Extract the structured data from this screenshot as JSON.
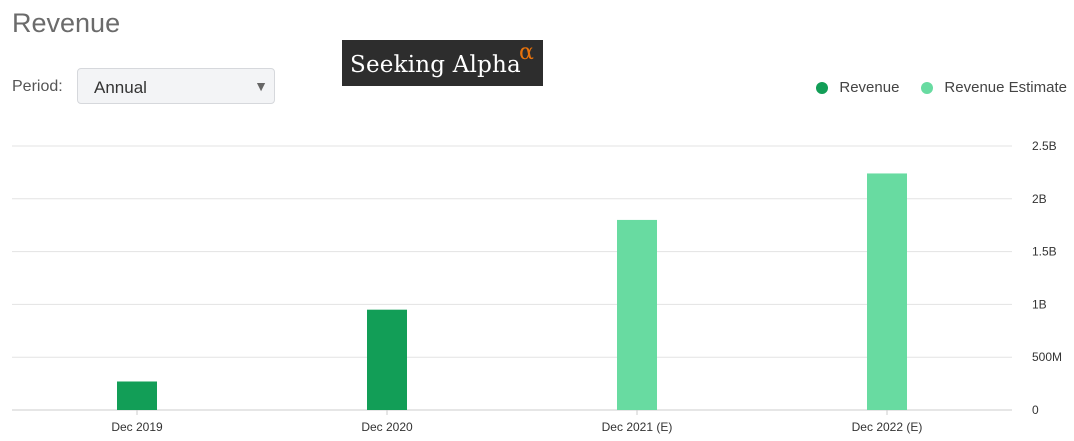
{
  "header": {
    "title": "Revenue"
  },
  "period": {
    "label": "Period:",
    "selected": "Annual",
    "arrow": "▼"
  },
  "logo": {
    "text": "Seeking Alpha",
    "alpha": "α"
  },
  "colors": {
    "revenue": "#129e57",
    "estimate": "#68dba1",
    "grid": "#e3e3e3",
    "axis": "#cccccc"
  },
  "chart_data": {
    "type": "bar",
    "categories": [
      "Dec 2019",
      "Dec 2020",
      "Dec 2021 (E)",
      "Dec 2022 (E)"
    ],
    "series": [
      {
        "name": "Revenue",
        "values": [
          0.27,
          0.95,
          null,
          null
        ]
      },
      {
        "name": "Revenue Estimate",
        "values": [
          null,
          null,
          1.8,
          2.24
        ]
      }
    ],
    "ylim": [
      0,
      2.5
    ],
    "yticks": [
      {
        "value": 0,
        "label": "0"
      },
      {
        "value": 0.5,
        "label": "500M"
      },
      {
        "value": 1,
        "label": "1B"
      },
      {
        "value": 1.5,
        "label": "1.5B"
      },
      {
        "value": 2,
        "label": "2B"
      },
      {
        "value": 2.5,
        "label": "2.5B"
      }
    ],
    "y_unit": "billions USD",
    "grid": true,
    "y_axis_position": "right",
    "legend_position": "top-right"
  }
}
